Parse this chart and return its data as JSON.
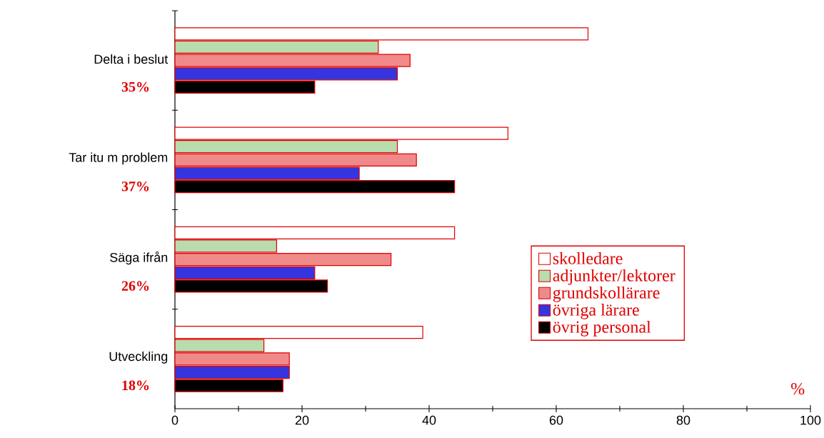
{
  "chart_data": {
    "type": "bar",
    "orientation": "horizontal",
    "categories": [
      "Delta i beslut",
      "Tar itu m problem",
      "Säga ifrån",
      "Utveckling"
    ],
    "series": [
      {
        "name": "skolledare",
        "color": "#ffffff",
        "values": [
          65,
          52.4,
          44,
          39
        ]
      },
      {
        "name": "adjunkter/lektorer",
        "color": "#b8dcae",
        "values": [
          32,
          35,
          16,
          14
        ]
      },
      {
        "name": "grundskollärare",
        "color": "#f08a8a",
        "values": [
          37,
          38,
          34,
          18
        ]
      },
      {
        "name": "övriga lärare",
        "color": "#3535e0",
        "values": [
          35,
          29,
          22,
          18
        ]
      },
      {
        "name": "övrig personal",
        "color": "#000000",
        "values": [
          22,
          44,
          24,
          17
        ]
      }
    ],
    "xlim": [
      0,
      100
    ],
    "xticks": [
      0,
      20,
      40,
      60,
      80,
      100
    ],
    "xlabel": "%",
    "annotations": [
      "35%",
      "37%",
      "26%",
      "18%"
    ],
    "legend": "right",
    "grid": false
  }
}
